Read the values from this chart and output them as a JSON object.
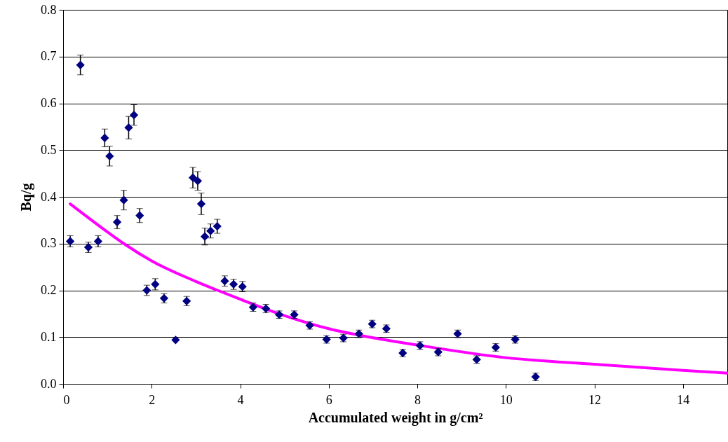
{
  "chart_data": {
    "type": "scatter",
    "xlabel": "Accumulated weight in g/cm²",
    "ylabel": "Bq/g",
    "xlim": [
      0,
      15
    ],
    "xticks": [
      0,
      2,
      4,
      6,
      8,
      10,
      12,
      14
    ],
    "ylim": [
      0,
      0.8
    ],
    "yticks": [
      {
        "value": 0,
        "label": "0.0"
      },
      0.1,
      0.2,
      0.3,
      0.4,
      0.5,
      0.6,
      0.7,
      0.8
    ],
    "grid": "y",
    "series": [
      {
        "type": "scatter",
        "marker": "diamond",
        "color": "#000080",
        "x": [
          0.16,
          0.39,
          0.57,
          0.79,
          0.94,
          1.05,
          1.22,
          1.37,
          1.48,
          1.6,
          1.73,
          1.89,
          2.08,
          2.28,
          2.54,
          2.79,
          2.93,
          3.04,
          3.12,
          3.2,
          3.33,
          3.48,
          3.65,
          3.85,
          4.05,
          4.29,
          4.58,
          4.88,
          5.22,
          5.57,
          5.95,
          6.33,
          6.68,
          6.98,
          7.3,
          7.67,
          8.06,
          8.47,
          8.91,
          9.34,
          9.77,
          10.21,
          10.67
        ],
        "values": [
          0.305,
          0.682,
          0.292,
          0.305,
          0.526,
          0.487,
          0.346,
          0.393,
          0.548,
          0.575,
          0.36,
          0.2,
          0.213,
          0.183,
          0.094,
          0.177,
          0.441,
          0.434,
          0.385,
          0.315,
          0.327,
          0.337,
          0.22,
          0.213,
          0.208,
          0.164,
          0.161,
          0.148,
          0.148,
          0.125,
          0.095,
          0.098,
          0.107,
          0.128,
          0.118,
          0.066,
          0.082,
          0.068,
          0.107,
          0.052,
          0.078,
          0.095,
          0.015
        ],
        "errors": [
          0.012,
          0.021,
          0.011,
          0.012,
          0.019,
          0.021,
          0.014,
          0.021,
          0.024,
          0.022,
          0.015,
          0.011,
          0.012,
          0.01,
          null,
          0.01,
          0.022,
          0.02,
          0.023,
          0.018,
          0.015,
          0.015,
          0.011,
          0.011,
          0.011,
          0.009,
          0.009,
          0.008,
          0.008,
          0.008,
          0.008,
          0.008,
          0.008,
          0.008,
          0.008,
          0.008,
          0.008,
          0.008,
          0.008,
          0.008,
          0.008,
          0.008,
          0.008
        ]
      },
      {
        "type": "line",
        "color": "#ff00ff",
        "x": [
          0.16,
          1,
          1.37,
          2,
          3,
          3.49,
          4,
          5,
          6,
          6.92,
          8,
          10,
          12,
          14,
          15
        ],
        "values": [
          0.385,
          0.325,
          0.3,
          0.263,
          0.219,
          0.2,
          0.181,
          0.146,
          0.118,
          0.1,
          0.083,
          0.056,
          0.042,
          0.029,
          0.023
        ]
      }
    ]
  }
}
